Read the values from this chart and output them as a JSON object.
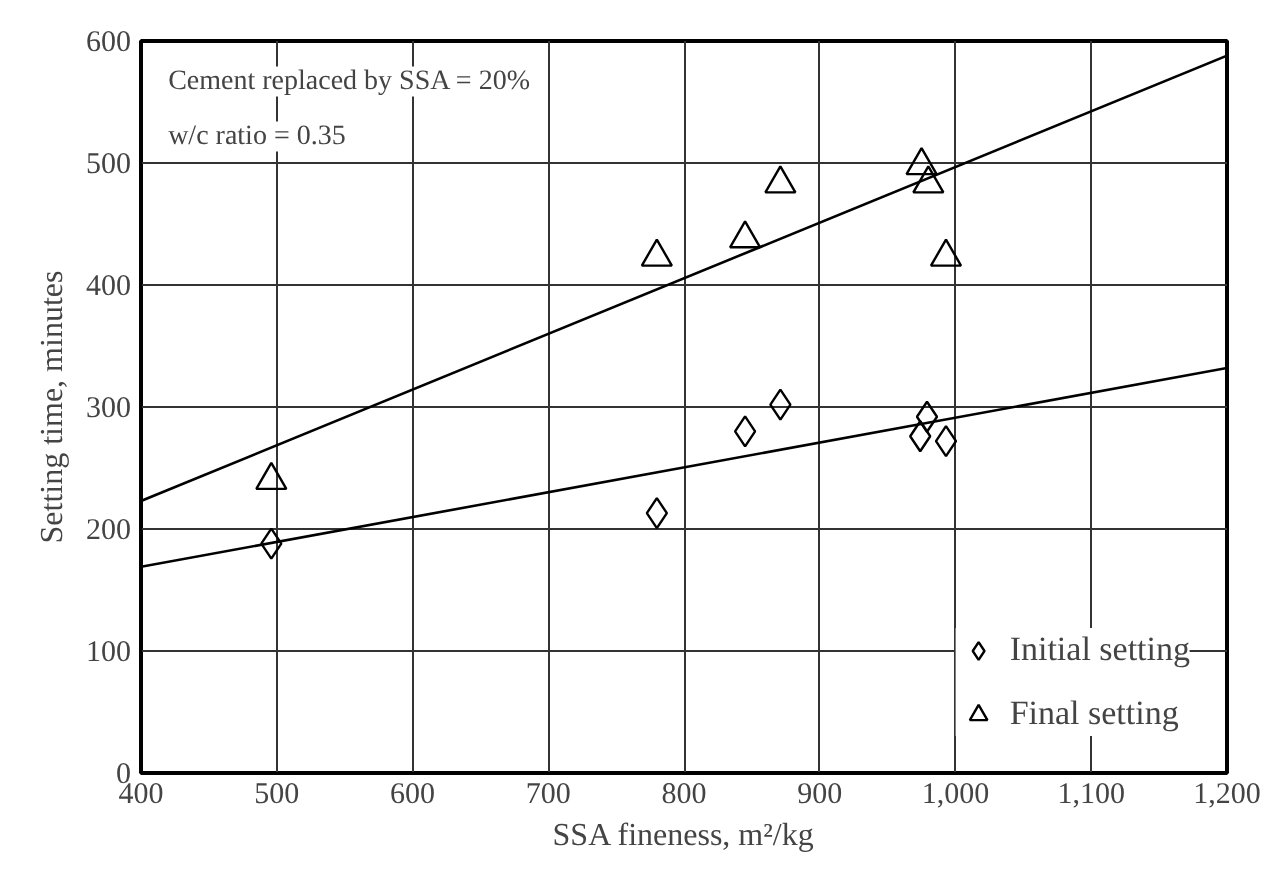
{
  "chart_data": {
    "type": "scatter",
    "xlabel": "SSA fineness, m²/kg",
    "ylabel": "Setting time, minutes",
    "xlim": [
      400,
      1200
    ],
    "ylim": [
      0,
      600
    ],
    "xticks": [
      400,
      500,
      600,
      700,
      800,
      900,
      {
        "value": 1000,
        "label": "1,000"
      },
      {
        "value": 1100,
        "label": "1,100"
      },
      {
        "value": 1200,
        "label": "1,200"
      }
    ],
    "yticks": [
      0,
      100,
      200,
      300,
      400,
      500,
      600
    ],
    "grid": true,
    "legend": "bottom right",
    "annotations": [
      "Cement replaced by SSA = 20%",
      "w/c ratio = 0.35"
    ],
    "series": [
      {
        "name": "Initial setting",
        "color": "#000000",
        "marker": "diamond",
        "x": [
          496,
          780,
          845,
          871,
          974,
          979,
          993
        ],
        "values": [
          188,
          213,
          280,
          302,
          276,
          292,
          272
        ]
      },
      {
        "name": "Final setting",
        "color": "#000000",
        "marker": "triangle",
        "x": [
          496,
          780,
          845,
          871,
          975,
          980,
          993
        ],
        "values": [
          240,
          423,
          438,
          483,
          498,
          483,
          423
        ]
      },
      {
        "type": "line",
        "color": "#000000",
        "x": [
          400,
          1200
        ],
        "values": [
          169,
          332
        ]
      },
      {
        "type": "line",
        "color": "#000000",
        "x": [
          400,
          1200
        ],
        "values": [
          223,
          588
        ]
      }
    ]
  }
}
